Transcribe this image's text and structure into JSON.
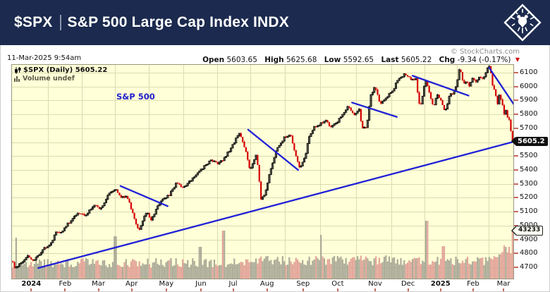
{
  "header": {
    "symbol": "$SPX",
    "index_name": "S&P 500 Large Cap Index INDX"
  },
  "info_bar": {
    "datetime": "11-Mar-2025 9:54am",
    "copyright": "© StockCharts.com",
    "quote": {
      "open_label": "Open",
      "open": "5603.65",
      "high_label": "High",
      "high": "5625.68",
      "low_label": "Low",
      "low": "5592.65",
      "last_label": "Last",
      "last": "5605.22",
      "chg_label": "Chg",
      "chg": "-9.34 (-0.17%)"
    }
  },
  "legend": {
    "line1": "$SPX (Daily) 5605.22",
    "line2": "Volume undef"
  },
  "chart_label": "S&P 500",
  "badges": {
    "price": "5605.2",
    "volume": "43233"
  },
  "chart_data": {
    "type": "candlestick",
    "symbol": "$SPX",
    "timeframe": "Daily",
    "last_close": 5605.22,
    "bars": 301,
    "bars_per_month": 21,
    "noise_pts": 16,
    "wick_pts": 9,
    "x_axis": {
      "months_total": 14.33,
      "labels": [
        "2024",
        "Feb",
        "Mar",
        "Apr",
        "May",
        "Jun",
        "Jul",
        "Aug",
        "Sep",
        "Oct",
        "Nov",
        "Dec",
        "2025",
        "Feb",
        "Mar"
      ],
      "label_m": [
        0.55,
        1.52,
        2.47,
        3.42,
        4.41,
        5.4,
        6.32,
        7.29,
        8.32,
        9.31,
        10.38,
        11.32,
        12.25,
        13.18,
        14.05
      ],
      "bold_labels": [
        0,
        12
      ]
    },
    "y_axis": {
      "min": 4619,
      "max": 6156,
      "ticks": [
        4700,
        4800,
        4900,
        5000,
        5100,
        5200,
        5300,
        5400,
        5500,
        5600,
        5700,
        5800,
        5900,
        6000,
        6100
      ]
    },
    "anchors_month_price": [
      [
        0.0,
        4745
      ],
      [
        0.1,
        4690
      ],
      [
        0.45,
        4783
      ],
      [
        0.58,
        4740
      ],
      [
        0.95,
        4845
      ],
      [
        1.05,
        4845
      ],
      [
        1.28,
        4958
      ],
      [
        1.4,
        4953
      ],
      [
        1.85,
        5088
      ],
      [
        2.1,
        5078
      ],
      [
        2.35,
        5150
      ],
      [
        2.52,
        5117
      ],
      [
        2.8,
        5241
      ],
      [
        2.97,
        5254
      ],
      [
        3.12,
        5205
      ],
      [
        3.3,
        5205
      ],
      [
        3.55,
        5011
      ],
      [
        3.62,
        4967
      ],
      [
        3.85,
        5100
      ],
      [
        3.97,
        5035
      ],
      [
        4.25,
        5180
      ],
      [
        4.5,
        5222
      ],
      [
        4.7,
        5308
      ],
      [
        4.9,
        5267
      ],
      [
        5.2,
        5354
      ],
      [
        5.48,
        5421
      ],
      [
        5.68,
        5473
      ],
      [
        5.88,
        5447
      ],
      [
        6.05,
        5475
      ],
      [
        6.28,
        5567
      ],
      [
        6.5,
        5667
      ],
      [
        6.68,
        5544
      ],
      [
        6.8,
        5399
      ],
      [
        6.92,
        5463
      ],
      [
        6.99,
        5522
      ],
      [
        7.06,
        5346
      ],
      [
        7.12,
        5186
      ],
      [
        7.25,
        5240
      ],
      [
        7.42,
        5434
      ],
      [
        7.58,
        5554
      ],
      [
        7.78,
        5634
      ],
      [
        7.97,
        5648
      ],
      [
        8.1,
        5520
      ],
      [
        8.22,
        5408
      ],
      [
        8.38,
        5495
      ],
      [
        8.48,
        5626
      ],
      [
        8.65,
        5714
      ],
      [
        8.88,
        5738
      ],
      [
        8.99,
        5762
      ],
      [
        9.08,
        5709
      ],
      [
        9.32,
        5751
      ],
      [
        9.48,
        5815
      ],
      [
        9.62,
        5864
      ],
      [
        9.78,
        5797
      ],
      [
        9.93,
        5832
      ],
      [
        10.0,
        5705
      ],
      [
        10.12,
        5712
      ],
      [
        10.18,
        5783
      ],
      [
        10.25,
        5929
      ],
      [
        10.38,
        6001
      ],
      [
        10.52,
        5871
      ],
      [
        10.68,
        5917
      ],
      [
        10.88,
        5969
      ],
      [
        11.0,
        6032
      ],
      [
        11.2,
        6090
      ],
      [
        11.42,
        6052
      ],
      [
        11.56,
        6051
      ],
      [
        11.62,
        5872
      ],
      [
        11.68,
        5867
      ],
      [
        11.73,
        5931
      ],
      [
        11.82,
        6040
      ],
      [
        11.92,
        5971
      ],
      [
        12.0,
        5882
      ],
      [
        12.06,
        5869
      ],
      [
        12.16,
        5942
      ],
      [
        12.26,
        5909
      ],
      [
        12.36,
        5827
      ],
      [
        12.42,
        5836
      ],
      [
        12.52,
        5950
      ],
      [
        12.62,
        5937
      ],
      [
        12.73,
        6049
      ],
      [
        12.78,
        6118
      ],
      [
        12.85,
        6101
      ],
      [
        12.89,
        6012
      ],
      [
        12.96,
        6039
      ],
      [
        13.0,
        6041
      ],
      [
        13.06,
        5995
      ],
      [
        13.16,
        6061
      ],
      [
        13.26,
        6026
      ],
      [
        13.36,
        6066
      ],
      [
        13.46,
        6051
      ],
      [
        13.56,
        6115
      ],
      [
        13.63,
        6144
      ],
      [
        13.68,
        6118
      ],
      [
        13.73,
        6013
      ],
      [
        13.81,
        5955
      ],
      [
        13.89,
        5861
      ],
      [
        13.93,
        5954
      ],
      [
        14.03,
        5849
      ],
      [
        14.08,
        5778
      ],
      [
        14.13,
        5842
      ],
      [
        14.18,
        5738
      ],
      [
        14.23,
        5770
      ],
      [
        14.28,
        5614
      ],
      [
        14.33,
        5605.22
      ]
    ],
    "trendlines": [
      {
        "name": "long-term-support",
        "m1": 0.75,
        "p1": 4695,
        "m2": 14.56,
        "p2": 5618
      },
      {
        "name": "apr-correction",
        "m1": 3.1,
        "p1": 5285,
        "m2": 4.45,
        "p2": 5140
      },
      {
        "name": "jul-aug-correction",
        "m1": 6.75,
        "p1": 5690,
        "m2": 8.18,
        "p2": 5400
      },
      {
        "name": "oct-nov-correction",
        "m1": 9.72,
        "p1": 5885,
        "m2": 11.0,
        "p2": 5782
      },
      {
        "name": "dec-jan-correction",
        "m1": 11.45,
        "p1": 6078,
        "m2": 13.05,
        "p2": 5935
      },
      {
        "name": "feb-mar-decline",
        "m1": 13.64,
        "p1": 6135,
        "m2": 14.63,
        "p2": 5765
      }
    ],
    "volume": {
      "last_value": 43233,
      "last_bar_h": 68,
      "spikes_month_heightpx": [
        [
          0.12,
          58
        ],
        [
          2.95,
          60
        ],
        [
          5.38,
          45
        ],
        [
          6.05,
          68
        ],
        [
          8.83,
          62
        ],
        [
          11.85,
          82
        ],
        [
          12.33,
          46
        ]
      ]
    },
    "colors": {
      "header_bg": "#1b2a4e",
      "chart_bg": "#ffffd8",
      "grid": "#dcdcb0",
      "candle_up": "#111111",
      "candle_down": "#d40000",
      "trendline": "#2020d8",
      "volume_up": "#a3a394",
      "volume_down": "#e09b93",
      "watermark_blue": "#2222cc",
      "axis_tick_red": "#c66a5e"
    }
  }
}
